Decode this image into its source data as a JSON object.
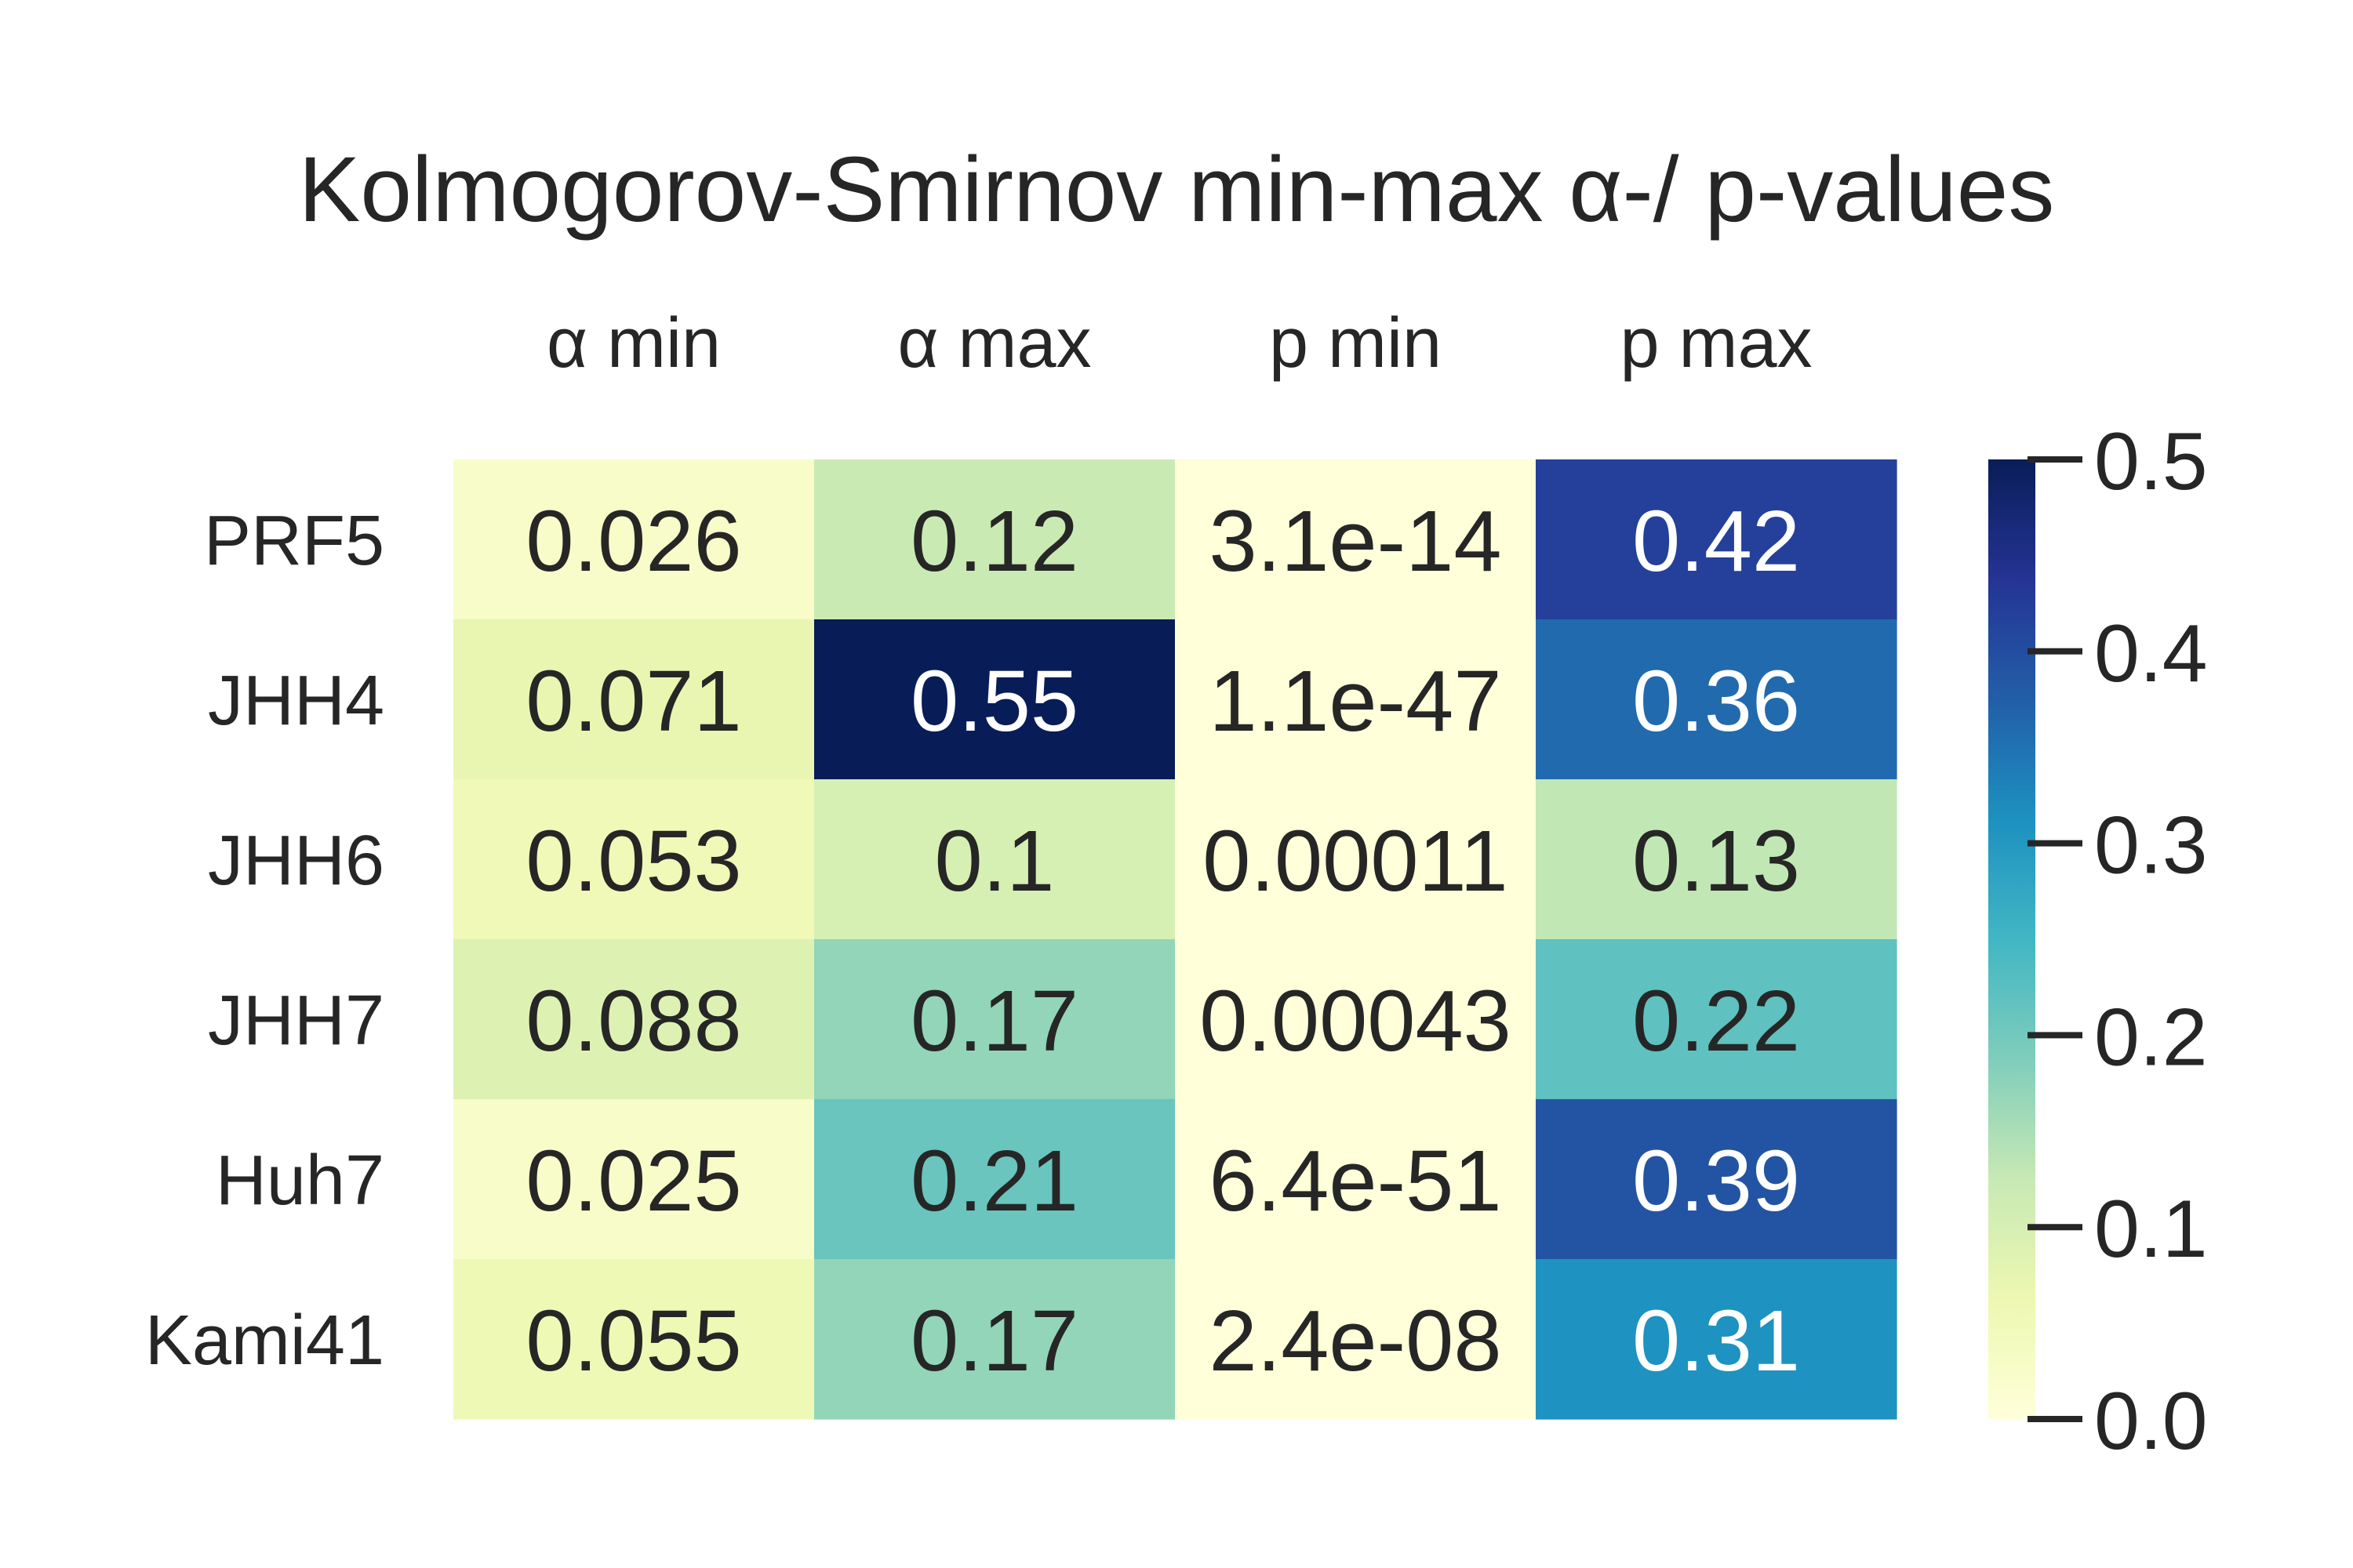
{
  "chart_data": {
    "type": "heatmap",
    "title": "Kolmogorov-Smirnov min-max α-/ p-values",
    "columns": [
      "α min",
      "α max",
      "p min",
      "p max"
    ],
    "rows": [
      "PRF5",
      "JHH4",
      "JHH6",
      "JHH7",
      "Huh7",
      "Kami41"
    ],
    "values": [
      [
        0.026,
        0.12,
        3.1e-14,
        0.42
      ],
      [
        0.071,
        0.55,
        1.1e-47,
        0.36
      ],
      [
        0.053,
        0.1,
        0.00011,
        0.13
      ],
      [
        0.088,
        0.17,
        0.00043,
        0.22
      ],
      [
        0.025,
        0.21,
        6.4e-51,
        0.39
      ],
      [
        0.055,
        0.17,
        2.4e-08,
        0.31
      ]
    ],
    "labels": [
      [
        "0.026",
        "0.12",
        "3.1e-14",
        "0.42"
      ],
      [
        "0.071",
        "0.55",
        "1.1e-47",
        "0.36"
      ],
      [
        "0.053",
        "0.1",
        "0.00011",
        "0.13"
      ],
      [
        "0.088",
        "0.17",
        "0.00043",
        "0.22"
      ],
      [
        "0.025",
        "0.21",
        "6.4e-51",
        "0.39"
      ],
      [
        "0.055",
        "0.17",
        "2.4e-08",
        "0.31"
      ]
    ],
    "colormap": "YlGnBu",
    "vmin": 0.0,
    "vmax": 0.5,
    "colorbar": {
      "ticks": [
        0.0,
        0.1,
        0.2,
        0.3,
        0.4,
        0.5
      ],
      "tick_labels": [
        "0.0",
        "0.1",
        "0.2",
        "0.3",
        "0.4",
        "0.5"
      ]
    },
    "x_tick_position": "top",
    "grid": false
  }
}
